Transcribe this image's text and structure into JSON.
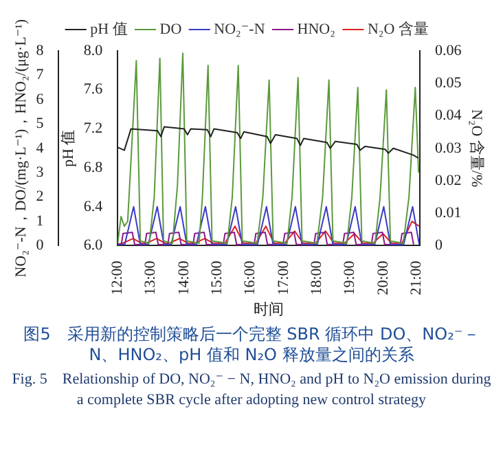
{
  "chart_data": {
    "type": "line",
    "xlabel": "时间",
    "ylabel": "NO₂⁻-N，DO/(mg·L⁻¹)，HNO₂/(μg·L⁻¹)",
    "y2label": "pH 值",
    "y3label": "N₂O 含量/%",
    "xlim": [
      12,
      21.1
    ],
    "xticks": [
      {
        "value": 12,
        "label": "12:00"
      },
      {
        "value": 13,
        "label": "13:00"
      },
      {
        "value": 14,
        "label": "14:00"
      },
      {
        "value": 15,
        "label": "15:00"
      },
      {
        "value": 16,
        "label": "16:00"
      },
      {
        "value": 17,
        "label": "17:00"
      },
      {
        "value": 18,
        "label": "18:00"
      },
      {
        "value": 19,
        "label": "19:00"
      },
      {
        "value": 20,
        "label": "20:00"
      },
      {
        "value": 21,
        "label": "21:00"
      }
    ],
    "ylim": [
      0,
      8
    ],
    "yticks": [
      0,
      1,
      2,
      3,
      4,
      5,
      6,
      7,
      8
    ],
    "y2lim": [
      6,
      8
    ],
    "y2ticks": [
      {
        "value": 6,
        "label": "6.0"
      },
      6.4,
      6.8,
      7.2,
      7.6,
      {
        "value": 8,
        "label": "8.0"
      }
    ],
    "y3lim": [
      0,
      0.06
    ],
    "y3ticks": [
      0,
      0.01,
      0.02,
      0.03,
      0.04,
      0.05,
      0.06
    ],
    "legend": "top",
    "grid": false,
    "marker": "none",
    "line_style": "solid",
    "series": [
      {
        "name": "pH 值",
        "color": "#222222",
        "axis": "y2",
        "x": [
          12.0,
          12.2,
          12.4,
          13.2,
          13.3,
          13.4,
          14.0,
          14.1,
          14.2,
          14.7,
          14.8,
          14.9,
          15.6,
          15.7,
          15.8,
          16.5,
          16.6,
          16.75,
          17.4,
          17.5,
          17.6,
          18.3,
          18.4,
          18.55,
          19.2,
          19.3,
          19.45,
          20.05,
          20.15,
          20.3,
          20.9,
          21.05
        ],
        "values": [
          7.01,
          6.98,
          7.2,
          7.18,
          7.12,
          7.22,
          7.2,
          7.14,
          7.2,
          7.19,
          7.12,
          7.2,
          7.16,
          7.1,
          7.17,
          7.12,
          7.05,
          7.14,
          7.1,
          7.03,
          7.1,
          7.06,
          7.0,
          7.07,
          7.04,
          6.98,
          7.02,
          6.99,
          6.95,
          7.0,
          6.93,
          6.9
        ]
      },
      {
        "name": "DO",
        "color": "#5a9a3a",
        "axis": "y",
        "x": [
          12.0,
          12.1,
          12.2,
          12.3,
          12.4,
          12.56,
          12.68,
          12.95,
          13.1,
          13.27,
          13.38,
          13.65,
          13.8,
          13.96,
          14.08,
          14.45,
          14.55,
          14.72,
          14.84,
          15.3,
          15.45,
          15.63,
          15.75,
          16.2,
          16.37,
          16.56,
          16.68,
          17.1,
          17.25,
          17.43,
          17.55,
          18.0,
          18.17,
          18.36,
          18.48,
          18.9,
          19.05,
          19.23,
          19.35,
          19.75,
          19.9,
          20.09,
          20.21,
          20.6,
          20.77,
          20.96,
          21.06
        ],
        "values": [
          0.1,
          1.2,
          0.8,
          1.0,
          3.5,
          7.6,
          0.2,
          0.1,
          2.0,
          7.7,
          0.2,
          0.1,
          2.5,
          7.9,
          0.2,
          0.1,
          2.0,
          7.4,
          0.2,
          0.1,
          2.0,
          7.4,
          0.2,
          0.1,
          2.0,
          6.8,
          0.2,
          0.1,
          2.0,
          6.9,
          0.2,
          0.1,
          2.0,
          6.8,
          0.2,
          0.1,
          2.0,
          6.5,
          0.2,
          0.1,
          2.0,
          6.4,
          0.2,
          0.1,
          2.0,
          6.5,
          3.0
        ]
      },
      {
        "name": "NO₂⁻-N",
        "color": "#3a3ac8",
        "axis": "y",
        "x": [
          12.0,
          12.21,
          12.48,
          12.68,
          12.92,
          13.19,
          13.39,
          13.61,
          13.88,
          14.08,
          14.37,
          14.64,
          14.84,
          15.28,
          15.55,
          15.75,
          16.21,
          16.48,
          16.68,
          17.08,
          17.35,
          17.55,
          18.01,
          18.28,
          18.48,
          18.88,
          19.15,
          19.35,
          19.74,
          20.01,
          20.21,
          20.61,
          20.88,
          21.08
        ],
        "values": [
          0.05,
          0.05,
          1.6,
          0.05,
          0.05,
          1.6,
          0.05,
          0.05,
          1.6,
          0.05,
          0.05,
          1.6,
          0.05,
          0.05,
          1.6,
          0.05,
          0.05,
          1.6,
          0.05,
          0.05,
          1.6,
          0.05,
          0.05,
          1.6,
          0.05,
          0.05,
          1.6,
          0.05,
          0.05,
          1.6,
          0.05,
          0.05,
          1.6,
          0.05
        ]
      },
      {
        "name": "HNO₂",
        "color": "#8a1a8a",
        "axis": "y",
        "x": [
          12.11,
          12.16,
          12.44,
          12.51,
          12.82,
          12.87,
          13.15,
          13.22,
          13.51,
          13.56,
          13.84,
          13.91,
          14.27,
          14.32,
          14.6,
          14.67,
          15.18,
          15.23,
          15.51,
          15.58,
          16.11,
          16.16,
          16.44,
          16.51,
          16.98,
          17.03,
          17.31,
          17.38,
          17.91,
          17.96,
          18.24,
          18.31,
          18.78,
          18.83,
          19.11,
          19.18,
          19.64,
          19.69,
          19.97,
          20.04,
          20.51,
          20.56,
          20.84,
          20.91
        ],
        "values": [
          0.05,
          0.5,
          0.55,
          0.05,
          0.05,
          0.5,
          0.55,
          0.05,
          0.05,
          0.5,
          0.55,
          0.05,
          0.05,
          0.5,
          0.55,
          0.05,
          0.05,
          0.5,
          0.55,
          0.05,
          0.05,
          0.5,
          0.55,
          0.05,
          0.05,
          0.5,
          0.55,
          0.05,
          0.05,
          0.5,
          0.55,
          0.05,
          0.05,
          0.5,
          0.55,
          0.05,
          0.05,
          0.5,
          0.55,
          0.05,
          0.05,
          0.5,
          0.55,
          0.05
        ]
      },
      {
        "name": "N₂O 含量",
        "color": "#e02020",
        "axis": "y3",
        "x": [
          12.0,
          12.16,
          12.46,
          12.71,
          12.87,
          13.17,
          13.42,
          13.56,
          13.86,
          14.11,
          14.32,
          14.62,
          14.87,
          15.23,
          15.53,
          15.78,
          16.16,
          16.46,
          16.71,
          17.03,
          17.33,
          17.58,
          17.96,
          18.26,
          18.51,
          18.83,
          19.13,
          19.38,
          19.69,
          19.99,
          20.24,
          20.56,
          20.86,
          21.08
        ],
        "values": [
          0.0005,
          0.0008,
          0.0022,
          0.0008,
          0.0008,
          0.0022,
          0.0008,
          0.0008,
          0.0022,
          0.0008,
          0.0008,
          0.0022,
          0.0008,
          0.0008,
          0.006,
          0.0008,
          0.0008,
          0.006,
          0.0008,
          0.0008,
          0.0045,
          0.0008,
          0.0008,
          0.0045,
          0.0008,
          0.0008,
          0.0037,
          0.0008,
          0.0008,
          0.0037,
          0.0008,
          0.0008,
          0.0075,
          0.006
        ]
      }
    ],
    "annotations": [
      "图5　采用新的控制策略后一个完整 SBR 循环中 DO、NO₂⁻－N、HNO₂、pH 值和 N₂O 释放量之间的关系",
      "Fig. 5　Relationship of DO, NO₂⁻ − N, HNO₂ and pH to N₂O emission during a complete SBR cycle after adopting new control strategy"
    ]
  }
}
